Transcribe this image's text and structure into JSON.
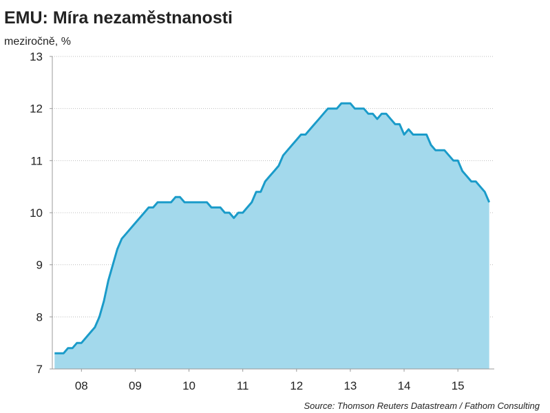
{
  "chart_data": {
    "type": "area",
    "title": "EMU: Míra nezaměstnanosti",
    "subtitle": "meziročně, %",
    "source": "Source: Thomson Reuters Datastream / Fathom Consulting",
    "x": [
      0,
      1,
      2,
      3,
      4,
      5,
      6,
      7,
      8,
      9,
      10,
      11,
      12,
      13,
      14,
      15,
      16,
      17,
      18,
      19,
      20,
      21,
      22,
      23,
      24,
      25,
      26,
      27,
      28,
      29,
      30,
      31,
      32,
      33,
      34,
      35,
      36,
      37,
      38,
      39,
      40,
      41,
      42,
      43,
      44,
      45,
      46,
      47,
      48,
      49,
      50,
      51,
      52,
      53,
      54,
      55,
      56,
      57,
      58,
      59,
      60,
      61,
      62,
      63,
      64,
      65,
      66,
      67,
      68,
      69,
      70,
      71,
      72,
      73,
      74,
      75,
      76,
      77,
      78,
      79,
      80,
      81,
      82,
      83,
      84,
      85,
      86,
      87,
      88,
      89,
      90,
      91,
      92,
      93,
      94,
      95,
      96,
      97
    ],
    "series": [
      {
        "color": "#1a9bc9",
        "fill": "#a3d9ec",
        "values": [
          7.3,
          7.3,
          7.3,
          7.4,
          7.4,
          7.5,
          7.5,
          7.6,
          7.7,
          7.8,
          8.0,
          8.3,
          8.7,
          9.0,
          9.3,
          9.5,
          9.6,
          9.7,
          9.8,
          9.9,
          10.0,
          10.1,
          10.1,
          10.2,
          10.2,
          10.2,
          10.2,
          10.3,
          10.3,
          10.2,
          10.2,
          10.2,
          10.2,
          10.2,
          10.2,
          10.1,
          10.1,
          10.1,
          10.0,
          10.0,
          9.9,
          10.0,
          10.0,
          10.1,
          10.2,
          10.4,
          10.4,
          10.6,
          10.7,
          10.8,
          10.9,
          11.1,
          11.2,
          11.3,
          11.4,
          11.5,
          11.5,
          11.6,
          11.7,
          11.8,
          11.9,
          12.0,
          12.0,
          12.0,
          12.1,
          12.1,
          12.1,
          12.0,
          12.0,
          12.0,
          11.9,
          11.9,
          11.8,
          11.9,
          11.9,
          11.8,
          11.7,
          11.7,
          11.5,
          11.6,
          11.5,
          11.5,
          11.5,
          11.5,
          11.3,
          11.2,
          11.2,
          11.2,
          11.1,
          11.0,
          11.0,
          10.8,
          10.7,
          10.6,
          10.6,
          10.5,
          10.4,
          10.2
        ]
      }
    ],
    "xlim": [
      -0.5,
      97.5
    ],
    "xticks": [
      {
        "value": 6,
        "label": "08"
      },
      {
        "value": 18,
        "label": "09"
      },
      {
        "value": 30,
        "label": "10"
      },
      {
        "value": 42,
        "label": "11"
      },
      {
        "value": 54,
        "label": "12"
      },
      {
        "value": 66,
        "label": "13"
      },
      {
        "value": 78,
        "label": "14"
      },
      {
        "value": 90,
        "label": "15"
      }
    ],
    "ylim": [
      7,
      13
    ],
    "yticks": [
      7,
      8,
      9,
      10,
      11,
      12,
      13
    ],
    "grid": true
  }
}
